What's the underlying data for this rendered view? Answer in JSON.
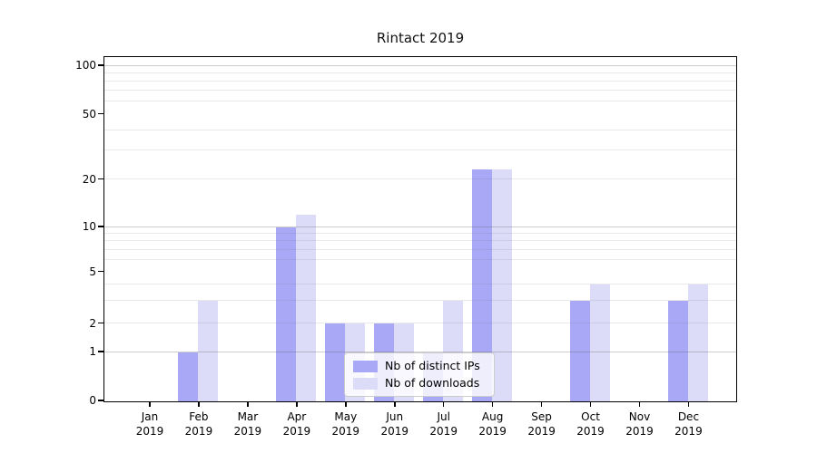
{
  "title": "Rintact 2019",
  "chart_data": {
    "type": "bar",
    "title": "Rintact 2019",
    "categories": [
      "Jan 2019",
      "Feb 2019",
      "Mar 2019",
      "Apr 2019",
      "May 2019",
      "Jun 2019",
      "Jul 2019",
      "Aug 2019",
      "Sep 2019",
      "Oct 2019",
      "Nov 2019",
      "Dec 2019"
    ],
    "series": [
      {
        "name": "Nb of distinct IPs",
        "color": "#a8a8f6",
        "values": [
          0,
          1,
          0,
          10,
          2,
          2,
          1,
          23,
          0,
          3,
          0,
          3
        ]
      },
      {
        "name": "Nb of downloads",
        "color": "#dcdcf9",
        "values": [
          0,
          3,
          0,
          12,
          2,
          2,
          3,
          23,
          0,
          4,
          0,
          4
        ]
      }
    ],
    "xlabel": "",
    "ylabel": "",
    "yscale": "symlog",
    "yticks": [
      0,
      1,
      2,
      5,
      10,
      20,
      50,
      100
    ],
    "ylim": [
      0,
      113
    ],
    "grid": "horizontal major+minor",
    "legend_position": "lower center"
  }
}
